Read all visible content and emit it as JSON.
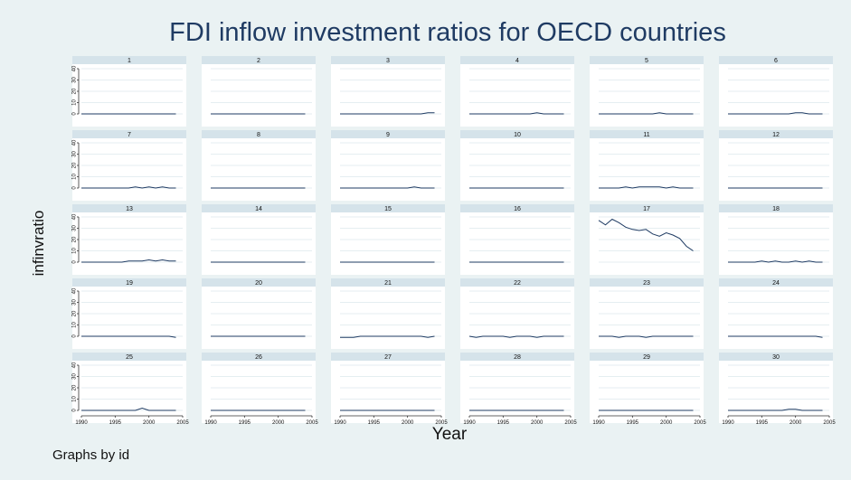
{
  "chart_data": {
    "type": "line",
    "title": "FDI inflow investment ratios for OECD countries",
    "xlabel": "Year",
    "ylabel": "infinvratio",
    "note": "Graphs by id",
    "xlim": [
      1990,
      2005
    ],
    "ylim": [
      0,
      40
    ],
    "xticks": [
      "1990",
      "1995",
      "2000",
      "2005"
    ],
    "yticks": [
      "0",
      "10",
      "20",
      "30",
      "40"
    ],
    "x": [
      1990,
      1991,
      1992,
      1993,
      1994,
      1995,
      1996,
      1997,
      1998,
      1999,
      2000,
      2001,
      2002,
      2003,
      2004
    ],
    "panels": [
      {
        "id": "1",
        "values": [
          0,
          0,
          0,
          0,
          0,
          0,
          0,
          0,
          0,
          0,
          0,
          0,
          0,
          0,
          0
        ]
      },
      {
        "id": "2",
        "values": [
          0,
          0,
          0,
          0,
          0,
          0,
          0,
          0,
          0,
          0,
          0,
          0,
          0,
          0,
          0
        ]
      },
      {
        "id": "3",
        "values": [
          0,
          0,
          0,
          0,
          0,
          0,
          0,
          0,
          0,
          0,
          0,
          0,
          0,
          1,
          1
        ]
      },
      {
        "id": "4",
        "values": [
          0,
          0,
          0,
          0,
          0,
          0,
          0,
          0,
          0,
          0,
          1,
          0,
          0,
          0,
          0
        ]
      },
      {
        "id": "5",
        "values": [
          0,
          0,
          0,
          0,
          0,
          0,
          0,
          0,
          0,
          1,
          0,
          0,
          0,
          0,
          0
        ]
      },
      {
        "id": "6",
        "values": [
          0,
          0,
          0,
          0,
          0,
          0,
          0,
          0,
          0,
          0,
          1,
          1,
          0,
          0,
          0
        ]
      },
      {
        "id": "7",
        "values": [
          0,
          0,
          0,
          0,
          0,
          0,
          0,
          0,
          1,
          0,
          1,
          0,
          1,
          0,
          0
        ]
      },
      {
        "id": "8",
        "values": [
          0,
          0,
          0,
          0,
          0,
          0,
          0,
          0,
          0,
          0,
          0,
          0,
          0,
          0,
          0
        ]
      },
      {
        "id": "9",
        "values": [
          0,
          0,
          0,
          0,
          0,
          0,
          0,
          0,
          0,
          0,
          0,
          1,
          0,
          0,
          0
        ]
      },
      {
        "id": "10",
        "values": [
          0,
          0,
          0,
          0,
          0,
          0,
          0,
          0,
          0,
          0,
          0,
          0,
          0,
          0,
          0
        ]
      },
      {
        "id": "11",
        "values": [
          0,
          0,
          0,
          0,
          1,
          0,
          1,
          1,
          1,
          1,
          0,
          1,
          0,
          0,
          0
        ]
      },
      {
        "id": "12",
        "values": [
          0,
          0,
          0,
          0,
          0,
          0,
          0,
          0,
          0,
          0,
          0,
          0,
          0,
          0,
          0
        ]
      },
      {
        "id": "13",
        "values": [
          0,
          0,
          0,
          0,
          0,
          0,
          0,
          1,
          1,
          1,
          2,
          1,
          2,
          1,
          1
        ]
      },
      {
        "id": "14",
        "values": [
          0,
          0,
          0,
          0,
          0,
          0,
          0,
          0,
          0,
          0,
          0,
          0,
          0,
          0,
          0
        ]
      },
      {
        "id": "15",
        "values": [
          0,
          0,
          0,
          0,
          0,
          0,
          0,
          0,
          0,
          0,
          0,
          0,
          0,
          0,
          0
        ]
      },
      {
        "id": "16",
        "values": [
          0,
          0,
          0,
          0,
          0,
          0,
          0,
          0,
          0,
          0,
          0,
          0,
          0,
          0,
          0
        ]
      },
      {
        "id": "17",
        "values": [
          37,
          33,
          38,
          35,
          31,
          29,
          28,
          29,
          25,
          23,
          26,
          24,
          21,
          14,
          10
        ]
      },
      {
        "id": "18",
        "values": [
          0,
          0,
          0,
          0,
          0,
          1,
          0,
          1,
          0,
          0,
          1,
          0,
          1,
          0,
          0
        ]
      },
      {
        "id": "19",
        "values": [
          0,
          0,
          0,
          0,
          0,
          0,
          0,
          0,
          0,
          0,
          0,
          0,
          0,
          0,
          -1
        ]
      },
      {
        "id": "20",
        "values": [
          0,
          0,
          0,
          0,
          0,
          0,
          0,
          0,
          0,
          0,
          0,
          0,
          0,
          0,
          0
        ]
      },
      {
        "id": "21",
        "values": [
          -1,
          -1,
          -1,
          0,
          0,
          0,
          0,
          0,
          0,
          0,
          0,
          0,
          0,
          -1,
          0
        ]
      },
      {
        "id": "22",
        "values": [
          0,
          -1,
          0,
          0,
          0,
          0,
          -1,
          0,
          0,
          0,
          -1,
          0,
          0,
          0,
          0
        ]
      },
      {
        "id": "23",
        "values": [
          0,
          0,
          0,
          -1,
          0,
          0,
          0,
          -1,
          0,
          0,
          0,
          0,
          0,
          0,
          0
        ]
      },
      {
        "id": "24",
        "values": [
          0,
          0,
          0,
          0,
          0,
          0,
          0,
          0,
          0,
          0,
          0,
          0,
          0,
          0,
          -1
        ]
      },
      {
        "id": "25",
        "values": [
          0,
          0,
          0,
          0,
          0,
          0,
          0,
          0,
          0,
          2,
          0,
          0,
          0,
          0,
          0
        ]
      },
      {
        "id": "26",
        "values": [
          0,
          0,
          0,
          0,
          0,
          0,
          0,
          0,
          0,
          0,
          0,
          0,
          0,
          0,
          0
        ]
      },
      {
        "id": "27",
        "values": [
          0,
          0,
          0,
          0,
          0,
          0,
          0,
          0,
          0,
          0,
          0,
          0,
          0,
          0,
          0
        ]
      },
      {
        "id": "28",
        "values": [
          0,
          0,
          0,
          0,
          0,
          0,
          0,
          0,
          0,
          0,
          0,
          0,
          0,
          0,
          0
        ]
      },
      {
        "id": "29",
        "values": [
          0,
          0,
          0,
          0,
          0,
          0,
          0,
          0,
          0,
          0,
          0,
          0,
          0,
          0,
          0
        ]
      },
      {
        "id": "30",
        "values": [
          0,
          0,
          0,
          0,
          0,
          0,
          0,
          0,
          0,
          1,
          1,
          0,
          0,
          0,
          0
        ]
      }
    ],
    "grid": true,
    "line_color": "#1f3b63",
    "background_color": "#eaf2f3",
    "panel_header_color": "#d5e3ea"
  }
}
